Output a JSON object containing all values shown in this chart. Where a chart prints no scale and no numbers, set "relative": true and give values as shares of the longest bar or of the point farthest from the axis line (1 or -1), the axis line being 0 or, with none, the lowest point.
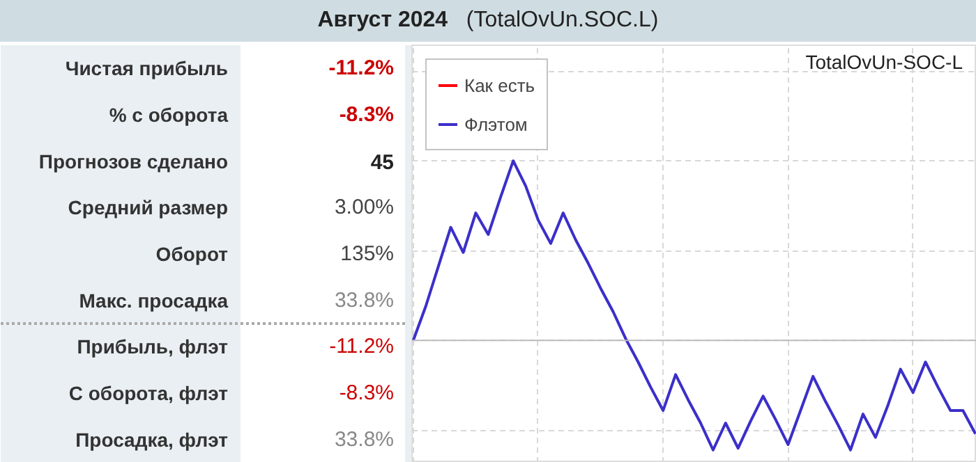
{
  "chart_data": [
    {
      "type": "other",
      "title": "Август 2024",
      "subtitle": "(TotalOvUn.SOC.L)",
      "categories": [
        "Чистая прибыль",
        "% с оборота",
        "Прогнозов сделано",
        "Средний размер",
        "Оборот",
        "Макс. просадка",
        "Прибыль, флэт",
        "С оборота, флэт",
        "Просадка, флэт"
      ],
      "value_labels": [
        "-11.2%",
        "-8.3%",
        "45",
        "3.00%",
        "135%",
        "33.8%",
        "-11.2%",
        "-8.3%",
        "33.8%"
      ],
      "colors": [
        "#cc0000",
        "#cc0000",
        "#222222",
        "#444444",
        "#444444",
        "#888888",
        "#cc0000",
        "#cc0000",
        "#888888"
      ]
    },
    {
      "type": "line",
      "relative": true,
      "legend": "top left",
      "grid": true,
      "annotations": [
        "TotalOvUn-SOC-L"
      ],
      "categories": [
        null,
        null,
        null,
        null,
        null,
        null,
        null,
        null,
        null,
        null,
        null,
        null,
        null,
        null,
        null,
        null,
        null,
        null,
        null,
        null,
        null,
        null,
        null,
        null,
        null,
        null,
        null,
        null,
        null,
        null,
        null,
        null,
        null,
        null,
        null,
        null,
        null,
        null,
        null,
        null,
        null,
        null,
        null,
        null,
        null,
        null
      ],
      "series": [
        {
          "name": "Как есть",
          "color": "#ff0000",
          "values": [
            null,
            null,
            null,
            null,
            null,
            null,
            null,
            null,
            null,
            null,
            null,
            null,
            null,
            null,
            null,
            null,
            null,
            null,
            null,
            null,
            null,
            null,
            null,
            null,
            null,
            null,
            null,
            null,
            null,
            null,
            null,
            null,
            null,
            null,
            null,
            null,
            null,
            null,
            null,
            null,
            null,
            null,
            null,
            null,
            null,
            null
          ]
        },
        {
          "name": "Флэтом",
          "color": "#3b2fc9",
          "values": [
            0,
            0.19,
            0.41,
            0.63,
            0.49,
            0.71,
            0.59,
            0.8,
            1,
            0.86,
            0.67,
            0.54,
            0.71,
            0.56,
            0.43,
            0.29,
            0.16,
            0.01,
            -0.12,
            -0.26,
            -0.39,
            -0.19,
            -0.33,
            -0.46,
            -0.61,
            -0.46,
            -0.6,
            -0.45,
            -0.31,
            -0.44,
            -0.58,
            -0.39,
            -0.2,
            -0.34,
            -0.47,
            -0.61,
            -0.41,
            -0.54,
            -0.36,
            -0.16,
            -0.29,
            -0.12,
            -0.26,
            -0.39,
            -0.39,
            -0.52
          ]
        }
      ]
    }
  ]
}
